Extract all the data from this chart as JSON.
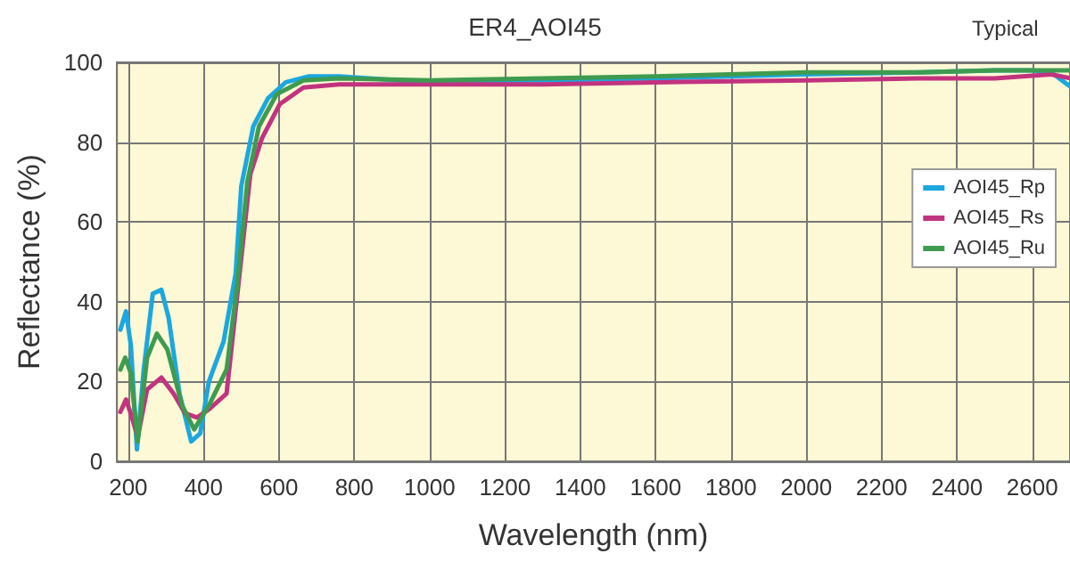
{
  "chart_data": {
    "type": "line",
    "title": "ER4_AOI45",
    "annotations": [
      "Typical"
    ],
    "xlabel": "Wavelength (nm)",
    "ylabel": "Reflectance (%)",
    "xlim": [
      170,
      2700
    ],
    "xticks": [
      200,
      400,
      600,
      800,
      1000,
      1200,
      1400,
      1600,
      1800,
      2000,
      2200,
      2400,
      2600
    ],
    "ylim": [
      0,
      100
    ],
    "yticks": [
      0,
      20,
      40,
      60,
      80,
      100
    ],
    "grid": true,
    "legend": "right",
    "marker": "none",
    "line_style": "solid",
    "series": [
      {
        "name": "AOI45_Rp",
        "color": "#1ba7df",
        "x": [
          179,
          194,
          207,
          223,
          241,
          265,
          288,
          307,
          336,
          367,
          391,
          414,
          453,
          485,
          500,
          532,
          571,
          618,
          680,
          760,
          1000,
          1300,
          1600,
          2000,
          2300,
          2500,
          2600,
          2650,
          2700
        ],
        "values": [
          33,
          37.6,
          29,
          3,
          23,
          42,
          43,
          36,
          17,
          5,
          7,
          20,
          30,
          47,
          69,
          84,
          91,
          95,
          96.5,
          96.5,
          95,
          95.5,
          96,
          97,
          97.5,
          98,
          98,
          97.5,
          94
        ]
      },
      {
        "name": "AOI45_Rs",
        "color": "#c2337f",
        "x": [
          179,
          194,
          210,
          225,
          250,
          288,
          320,
          351,
          382,
          414,
          461,
          492,
          524,
          555,
          602,
          665,
          760,
          1000,
          1300,
          1600,
          2000,
          2300,
          2500,
          2650,
          2700
        ],
        "values": [
          12.4,
          15.5,
          11,
          6,
          18,
          21,
          17,
          12,
          11,
          13,
          17,
          44,
          72,
          81,
          89.5,
          93.7,
          94.5,
          94.5,
          94.5,
          95,
          95.5,
          96,
          96,
          97,
          96
        ]
      },
      {
        "name": "AOI45_Ru",
        "color": "#3e9b4f",
        "x": [
          179,
          192,
          207,
          225,
          250,
          276,
          304,
          343,
          375,
          414,
          461,
          489,
          516,
          547,
          594,
          665,
          760,
          1000,
          1300,
          1600,
          2000,
          2300,
          2500,
          2700
        ],
        "values": [
          23,
          26,
          22,
          5,
          26,
          32,
          28,
          14,
          8,
          14,
          23,
          44,
          70,
          84,
          92,
          95.5,
          96,
          95.5,
          96,
          96.5,
          97.5,
          97.5,
          98,
          98
        ]
      }
    ]
  }
}
